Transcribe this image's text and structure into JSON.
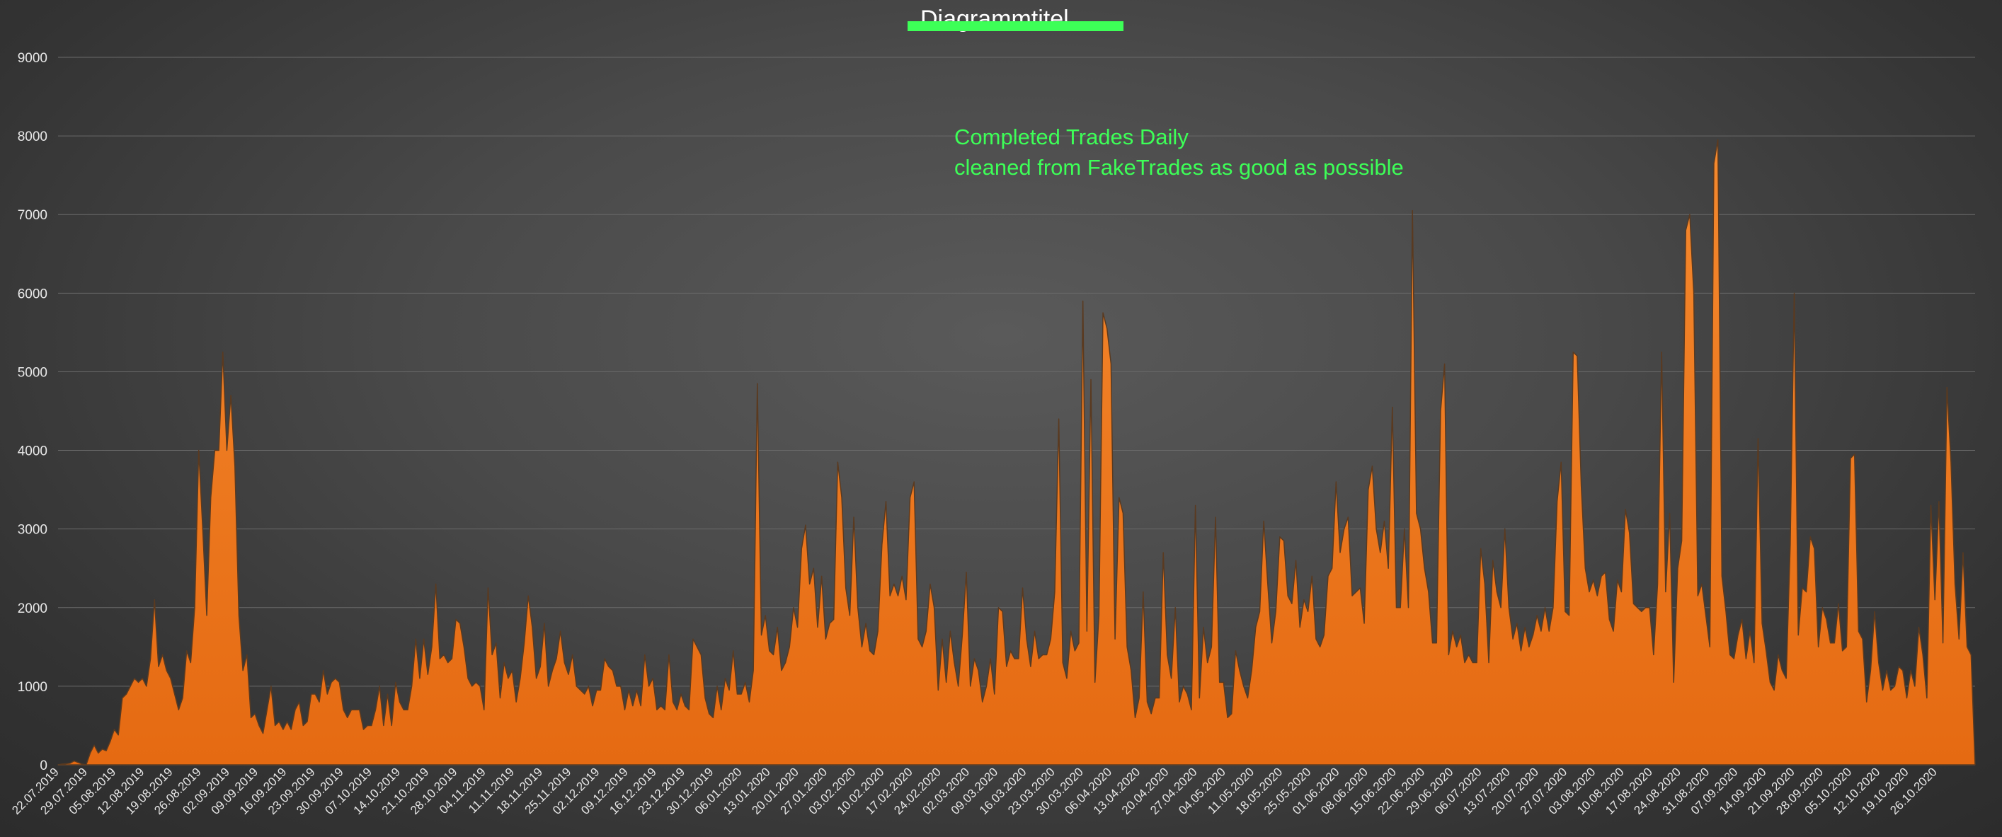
{
  "chart_data": {
    "type": "area",
    "title": "Diagrammtitel",
    "title_struck_out": true,
    "annotation_lines": [
      "Completed Trades Daily",
      "cleaned from FakeTrades as good as possible"
    ],
    "xlabel": "",
    "ylabel": "",
    "ylim": [
      0,
      9000
    ],
    "yticks": [
      0,
      1000,
      2000,
      3000,
      4000,
      5000,
      6000,
      7000,
      8000,
      9000
    ],
    "xtick_labels": [
      "22.07.2019",
      "29.07.2019",
      "05.08.2019",
      "12.08.2019",
      "19.08.2019",
      "26.08.2019",
      "02.09.2019",
      "09.09.2019",
      "16.09.2019",
      "23.09.2019",
      "30.09.2019",
      "07.10.2019",
      "14.10.2019",
      "21.10.2019",
      "28.10.2019",
      "04.11.2019",
      "11.11.2019",
      "18.11.2019",
      "25.11.2019",
      "02.12.2019",
      "09.12.2019",
      "16.12.2019",
      "23.12.2019",
      "30.12.2019",
      "06.01.2020",
      "13.01.2020",
      "20.01.2020",
      "27.01.2020",
      "03.02.2020",
      "10.02.2020",
      "17.02.2020",
      "24.02.2020",
      "02.03.2020",
      "09.03.2020",
      "16.03.2020",
      "23.03.2020",
      "30.03.2020",
      "06.04.2020",
      "13.04.2020",
      "20.04.2020",
      "27.04.2020",
      "04.05.2020",
      "11.05.2020",
      "18.05.2020",
      "25.05.2020",
      "01.06.2020",
      "08.06.2020",
      "15.06.2020",
      "22.06.2020",
      "29.06.2020",
      "06.07.2020",
      "13.07.2020",
      "20.07.2020",
      "27.07.2020",
      "03.08.2020",
      "10.08.2020",
      "17.08.2020",
      "24.08.2020",
      "31.08.2020",
      "07.09.2020",
      "14.09.2020",
      "21.09.2020",
      "28.09.2020",
      "05.10.2020",
      "12.10.2020",
      "19.10.2020",
      "26.10.2020"
    ],
    "grid": true,
    "legend": "none",
    "series": [
      {
        "values": [
          0,
          10,
          15,
          20,
          50,
          30,
          10,
          0,
          150,
          250,
          150,
          200,
          180,
          300,
          450,
          380,
          850,
          900,
          1000,
          1100,
          1050,
          1100,
          1000,
          1350,
          2100,
          1250,
          1400,
          1200,
          1100,
          900,
          700,
          850,
          1450,
          1300,
          2000,
          4000,
          3000,
          1900,
          3400,
          4000,
          4000,
          5250,
          4000,
          4700,
          3800,
          1900,
          1200,
          1400,
          600,
          650,
          500,
          400,
          700,
          1000,
          500,
          550,
          450,
          550,
          450,
          700,
          800,
          500,
          550,
          900,
          900,
          800,
          1200,
          900,
          1050,
          1100,
          1050,
          700,
          600,
          700,
          700,
          700,
          450,
          500,
          500,
          700,
          1000,
          500,
          900,
          500,
          1050,
          800,
          700,
          700,
          1000,
          1600,
          1100,
          1600,
          1150,
          1500,
          2300,
          1350,
          1400,
          1300,
          1350,
          1850,
          1800,
          1500,
          1100,
          1000,
          1050,
          1000,
          700,
          2250,
          1400,
          1550,
          850,
          1300,
          1100,
          1200,
          800,
          1100,
          1550,
          2150,
          1750,
          1100,
          1250,
          1800,
          1000,
          1200,
          1350,
          1700,
          1300,
          1150,
          1400,
          1000,
          950,
          900,
          1000,
          750,
          950,
          950,
          1350,
          1250,
          1200,
          1000,
          1000,
          700,
          950,
          750,
          950,
          750,
          1400,
          1000,
          1100,
          700,
          750,
          700,
          1400,
          800,
          700,
          900,
          750,
          700,
          1600,
          1500,
          1400,
          850,
          650,
          600,
          1000,
          700,
          1100,
          950,
          1450,
          900,
          900,
          1050,
          800,
          1200,
          4850,
          1650,
          1900,
          1450,
          1400,
          1750,
          1200,
          1300,
          1500,
          2000,
          1750,
          2750,
          3050,
          2300,
          2500,
          1750,
          2400,
          1600,
          1800,
          1850,
          3850,
          3400,
          2250,
          1900,
          3150,
          2000,
          1500,
          1800,
          1450,
          1400,
          1700,
          2800,
          3350,
          2150,
          2300,
          2150,
          2400,
          2100,
          3400,
          3600,
          1600,
          1500,
          1700,
          2300,
          2000,
          950,
          1600,
          1050,
          1700,
          1300,
          1000,
          1650,
          2450,
          1000,
          1350,
          1200,
          800,
          1000,
          1350,
          900,
          2000,
          1950,
          1250,
          1450,
          1350,
          1350,
          2250,
          1600,
          1250,
          1700,
          1350,
          1400,
          1400,
          1600,
          2200,
          4400,
          1300,
          1100,
          1700,
          1450,
          1550,
          5900,
          1700,
          4900,
          1050,
          1900,
          5750,
          5550,
          5100,
          1600,
          3400,
          3200,
          1500,
          1200,
          600,
          850,
          2200,
          800,
          650,
          850,
          850,
          2700,
          1400,
          1100,
          2000,
          800,
          1000,
          900,
          700,
          3300,
          850,
          1750,
          1300,
          1500,
          3150,
          1050,
          1050,
          600,
          650,
          1450,
          1200,
          1000,
          850,
          1200,
          1750,
          1950,
          3100,
          2300,
          1550,
          1950,
          2900,
          2850,
          2150,
          2050,
          2600,
          1750,
          2100,
          1950,
          2400,
          1600,
          1500,
          1650,
          2400,
          2500,
          3600,
          2700,
          3000,
          3150,
          2150,
          2200,
          2250,
          1800,
          3500,
          3800,
          3000,
          2700,
          3100,
          2500,
          4550,
          2000,
          2000,
          3000,
          2000,
          7050,
          3200,
          3000,
          2500,
          2200,
          1550,
          1550,
          4500,
          5100,
          1400,
          1700,
          1500,
          1650,
          1300,
          1400,
          1300,
          1300,
          2750,
          2300,
          1300,
          2600,
          2200,
          2000,
          3000,
          2000,
          1600,
          1800,
          1450,
          1750,
          1500,
          1650,
          1900,
          1700,
          2000,
          1700,
          2000,
          3350,
          3850,
          1950,
          1900,
          5250,
          5200,
          3550,
          2500,
          2200,
          2350,
          2150,
          2400,
          2450,
          1850,
          1700,
          2350,
          2200,
          3250,
          2950,
          2050,
          2000,
          1950,
          2000,
          2000,
          1400,
          2300,
          5250,
          2200,
          3200,
          1050,
          2500,
          2850,
          6800,
          7000,
          6000,
          2150,
          2300,
          1900,
          1500,
          7650,
          7950,
          2400,
          1950,
          1400,
          1350,
          1650,
          1850,
          1350,
          1700,
          1300,
          4150,
          1800,
          1450,
          1050,
          950,
          1400,
          1200,
          1100,
          2800,
          6000,
          1650,
          2250,
          2200,
          2900,
          2750,
          1500,
          2000,
          1850,
          1550,
          1550,
          2050,
          1450,
          1500,
          3900,
          3950,
          1700,
          1600,
          800,
          1200,
          1950,
          1300,
          950,
          1200,
          950,
          1000,
          1250,
          1200,
          850,
          1200,
          1000,
          1750,
          1400,
          850,
          3300,
          2100,
          3350,
          1550,
          4800,
          3850,
          2300,
          1600,
          2700,
          1500,
          1400,
          0
        ]
      }
    ],
    "colors": {
      "fill": "#f28024",
      "fill_dark": "#e06a10",
      "outline": "#5a3a20",
      "grid": "#6a6a6a",
      "tick_text": "#e8e8e8",
      "title_mark": "#3dff57",
      "annotation": "#3dff57"
    }
  }
}
